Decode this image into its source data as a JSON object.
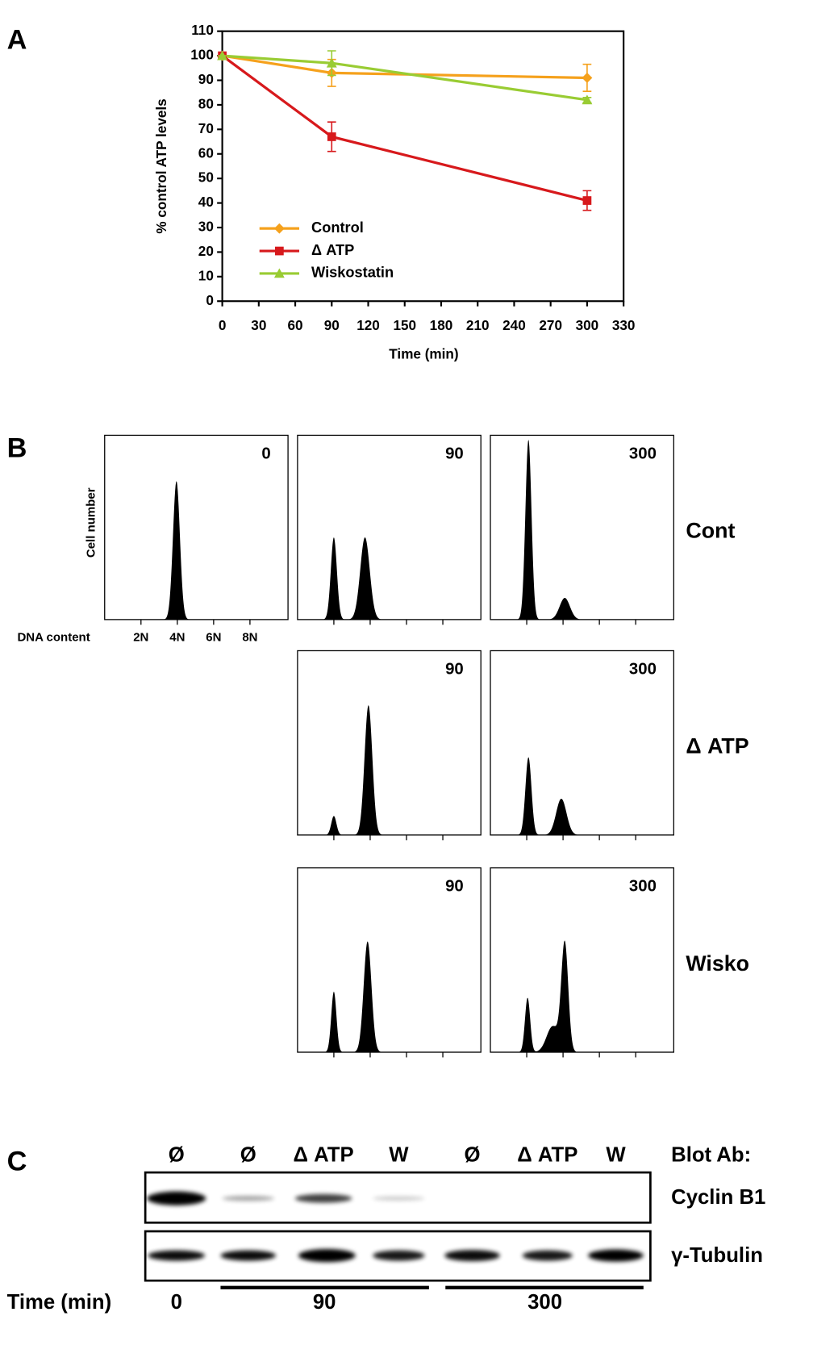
{
  "panel_labels": [
    "A",
    "B",
    "C"
  ],
  "chart_data": {
    "type": "line",
    "xlabel": "Time (min)",
    "ylabel": "% control ATP levels",
    "x": [
      0,
      90,
      300
    ],
    "xlim": [
      0,
      330
    ],
    "xticks": [
      0,
      30,
      60,
      90,
      120,
      150,
      180,
      210,
      240,
      270,
      300,
      330
    ],
    "ylim": [
      0,
      110
    ],
    "yticks": [
      0,
      10,
      20,
      30,
      40,
      50,
      60,
      70,
      80,
      90,
      100,
      110
    ],
    "legend": "lower left",
    "series": [
      {
        "name": "Control",
        "color": "#f5a11c",
        "marker": "diamond",
        "values": [
          100,
          93,
          91
        ],
        "errors": [
          0,
          5.5,
          5.5
        ]
      },
      {
        "name": "Δ ATP",
        "color": "#d7191c",
        "marker": "square",
        "values": [
          100,
          67,
          41
        ],
        "errors": [
          0,
          6,
          4
        ]
      },
      {
        "name": "Wiskostatin",
        "color": "#99cc33",
        "marker": "triangle",
        "values": [
          100,
          97,
          82
        ],
        "errors": [
          0,
          5,
          1
        ]
      }
    ]
  },
  "panel_b": {
    "ylabel": "Cell number",
    "xlabel": "DNA content",
    "xtick_labels": [
      "2N",
      "4N",
      "6N",
      "8N"
    ],
    "rows": [
      {
        "label": "Cont",
        "times": [
          "0",
          "90",
          "300"
        ]
      },
      {
        "label": "Δ ATP",
        "times": [
          "90",
          "300"
        ]
      },
      {
        "label": "Wisko",
        "times": [
          "90",
          "300"
        ]
      }
    ]
  },
  "panel_c": {
    "lanes": [
      "Ø",
      "Ø",
      "Δ ATP",
      "W",
      "Ø",
      "Δ ATP",
      "W"
    ],
    "header": "Blot Ab:",
    "antibodies": [
      "Cyclin B1",
      "γ-Tubulin"
    ],
    "time_label": "Time (min)",
    "time_groups": [
      "0",
      "90",
      "300"
    ]
  }
}
